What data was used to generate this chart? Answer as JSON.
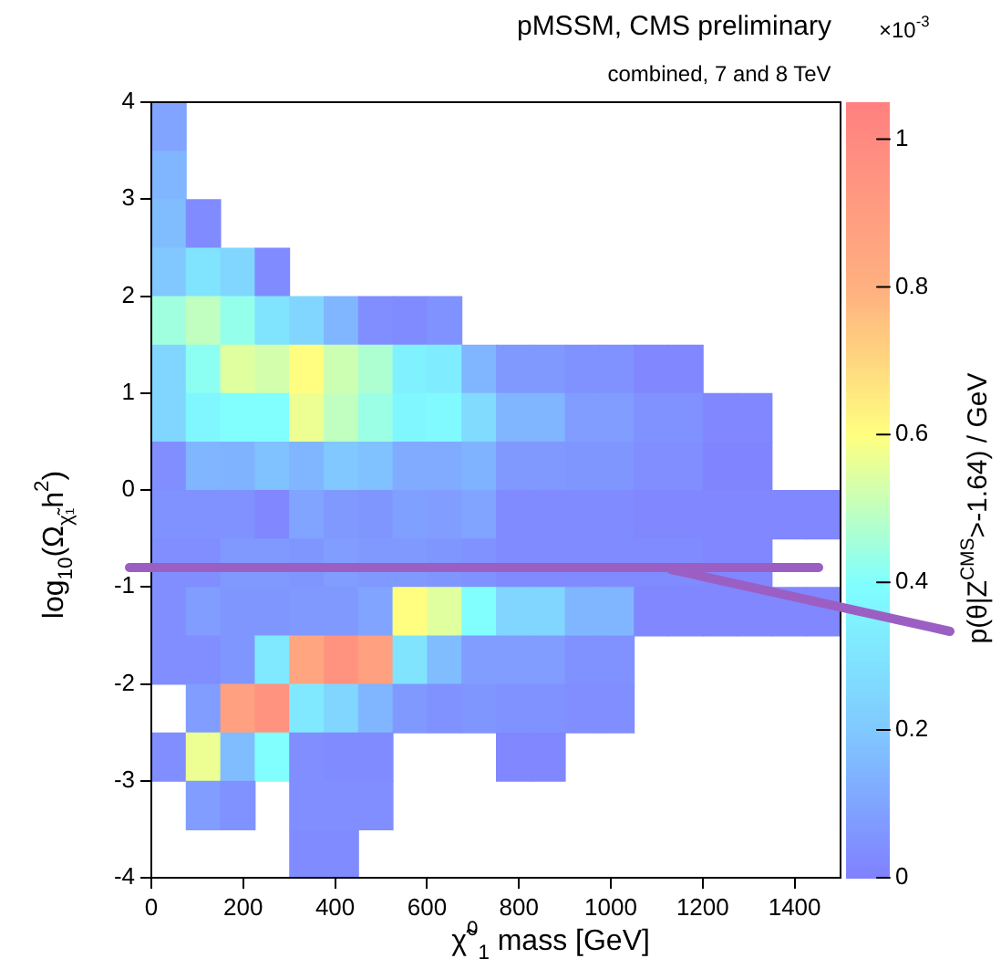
{
  "chart_data": {
    "type": "heatmap",
    "title": "pMSSM, CMS preliminary",
    "subtitle": "combined, 7 and 8 TeV",
    "xlabel": "χ̃$^{0}$$_{1}$ mass [GeV]",
    "ylabel": "log$_{10}$(Ω$_{χ̃₁}$h$^{2}$)",
    "clabel": "p(θ|Z$^{CMS}$>-1.64) / GeV",
    "annotations": [
      "×10$^{-3}$"
    ],
    "x": [
      37.5,
      112.5,
      187.5,
      262.5,
      337.5,
      412.5,
      487.5,
      562.5,
      637.5,
      712.5,
      787.5,
      862.5,
      937.5,
      1012.5,
      1087.5,
      1162.5,
      1237.5,
      1312.5,
      1387.5,
      1462.5
    ],
    "y": [
      3.75,
      3.25,
      2.75,
      2.25,
      1.75,
      1.25,
      0.75,
      0.25,
      -0.25,
      -0.75,
      -1.25,
      -1.75,
      -2.25,
      -2.75,
      -3.25,
      -3.75
    ],
    "cells": [
      [
        0.1,
        null,
        null,
        null,
        null,
        null,
        null,
        null,
        null,
        null,
        null,
        null,
        null,
        null,
        null,
        null,
        null,
        null,
        null,
        null
      ],
      [
        0.15,
        null,
        null,
        null,
        null,
        null,
        null,
        null,
        null,
        null,
        null,
        null,
        null,
        null,
        null,
        null,
        null,
        null,
        null,
        null
      ],
      [
        0.17,
        0.03,
        null,
        null,
        null,
        null,
        null,
        null,
        null,
        null,
        null,
        null,
        null,
        null,
        null,
        null,
        null,
        null,
        null,
        null
      ],
      [
        0.2,
        0.3,
        0.25,
        0.03,
        null,
        null,
        null,
        null,
        null,
        null,
        null,
        null,
        null,
        null,
        null,
        null,
        null,
        null,
        null,
        null
      ],
      [
        0.45,
        0.5,
        0.43,
        0.3,
        0.25,
        0.15,
        0.04,
        0.03,
        0.05,
        null,
        null,
        null,
        null,
        null,
        null,
        null,
        null,
        null,
        null,
        null
      ],
      [
        0.25,
        0.42,
        0.55,
        0.53,
        0.6,
        0.52,
        0.47,
        0.35,
        0.33,
        0.15,
        0.07,
        0.07,
        0.05,
        0.05,
        0.02,
        0.02,
        null,
        null,
        null,
        null
      ],
      [
        0.25,
        0.37,
        0.4,
        0.4,
        0.57,
        0.5,
        0.44,
        0.37,
        0.38,
        0.27,
        0.15,
        0.15,
        0.08,
        0.08,
        0.05,
        0.05,
        0.02,
        0.02,
        null,
        null
      ],
      [
        0.04,
        0.15,
        0.14,
        0.18,
        0.15,
        0.2,
        0.18,
        0.12,
        0.12,
        0.14,
        0.07,
        0.07,
        0.06,
        0.06,
        0.04,
        0.04,
        0.01,
        0.01,
        null,
        null
      ],
      [
        0.05,
        0.05,
        0.05,
        0.02,
        0.1,
        0.07,
        0.06,
        0.09,
        0.08,
        0.1,
        0.03,
        0.03,
        0.03,
        0.03,
        0.02,
        0.02,
        0.02,
        0.02,
        0.02,
        0.02
      ],
      [
        0.04,
        0.04,
        0.07,
        0.07,
        0.06,
        0.08,
        0.07,
        0.07,
        0.06,
        0.05,
        0.03,
        0.03,
        0.03,
        0.03,
        0.03,
        0.03,
        0.02,
        0.02,
        null,
        null
      ],
      [
        0.04,
        0.08,
        0.06,
        0.06,
        0.07,
        0.07,
        0.1,
        0.6,
        0.55,
        0.4,
        0.25,
        0.25,
        0.15,
        0.15,
        0.02,
        0.02,
        0.02,
        0.02,
        0.02,
        0.02
      ],
      [
        0.04,
        0.04,
        0.06,
        0.32,
        0.85,
        0.95,
        0.88,
        0.3,
        0.17,
        0.08,
        0.08,
        0.08,
        0.05,
        0.05,
        null,
        null,
        null,
        null,
        null,
        null
      ],
      [
        null,
        0.08,
        0.88,
        0.95,
        0.32,
        0.25,
        0.15,
        0.07,
        0.05,
        0.06,
        0.05,
        0.05,
        0.04,
        0.04,
        null,
        null,
        null,
        null,
        null,
        null
      ],
      [
        0.04,
        0.57,
        0.17,
        0.4,
        0.04,
        0.03,
        0.03,
        null,
        null,
        null,
        0.02,
        0.02,
        null,
        null,
        null,
        null,
        null,
        null,
        null,
        null
      ],
      [
        null,
        0.08,
        0.05,
        null,
        0.04,
        0.04,
        0.04,
        null,
        null,
        null,
        null,
        null,
        null,
        null,
        null,
        null,
        null,
        null,
        null,
        null
      ],
      [
        null,
        null,
        null,
        null,
        0.03,
        0.03,
        null,
        null,
        null,
        null,
        null,
        null,
        null,
        null,
        null,
        null,
        null,
        null,
        null,
        null
      ]
    ],
    "clim": [
      0,
      1.05
    ],
    "cticks": [
      0,
      0.2,
      0.4,
      0.6,
      0.8,
      1
    ],
    "xlim": [
      0,
      1500
    ],
    "xticks": [
      0,
      200,
      400,
      600,
      800,
      1000,
      1200,
      1400
    ],
    "ylim": [
      -4,
      4
    ],
    "yticks": [
      -4,
      -3,
      -2,
      -1,
      0,
      1,
      2,
      3,
      4
    ],
    "ref_lines": [
      {
        "axis": "y",
        "value": -0.8,
        "color": "#9b5fc4"
      }
    ],
    "grid": false,
    "legend": false
  }
}
